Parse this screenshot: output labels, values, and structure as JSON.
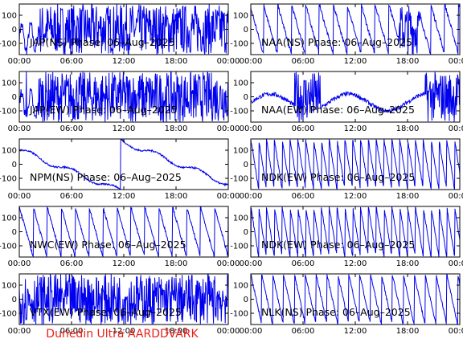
{
  "footer": "Dunedin Ultra AARDDVARK",
  "colors": {
    "trace": "#0000ee",
    "frame": "#000000",
    "footer": "#e8201a"
  },
  "chart_data": [
    {
      "type": "line",
      "title": "JAP(NS) Phase: 06–Aug–2025",
      "pattern": "saturated",
      "period_h": 0,
      "ylim": [
        -180,
        180
      ],
      "yticks": [
        100,
        0,
        -100
      ],
      "xticks": [
        "00:00",
        "06:00",
        "12:00",
        "18:00",
        "00:00"
      ]
    },
    {
      "type": "line",
      "title": "NAA(NS) Phase: 06–Aug–2025",
      "pattern": "mixed",
      "period_h": 1.6,
      "ylim": [
        -180,
        180
      ],
      "yticks": [
        100,
        0,
        -100
      ],
      "xticks": [
        "00:00",
        "06:00",
        "12:00",
        "18:00",
        "00:00"
      ]
    },
    {
      "type": "line",
      "title": "JAP(EW) Phase: 06–Aug–2025",
      "pattern": "saturated",
      "period_h": 0,
      "ylim": [
        -180,
        180
      ],
      "yticks": [
        100,
        0,
        -100
      ],
      "xticks": [
        "00:00",
        "06:00",
        "12:00",
        "18:00",
        "00:00"
      ]
    },
    {
      "type": "line",
      "title": "NAA(EW) Phase: 06–Aug–2025",
      "pattern": "sparse",
      "period_h": 3,
      "ylim": [
        -180,
        180
      ],
      "yticks": [
        100,
        0,
        -100
      ],
      "xticks": [
        "00:00",
        "06:00",
        "12:00",
        "18:00",
        "00:00"
      ]
    },
    {
      "type": "line",
      "title": "NPM(NS) Phase: 06–Aug–2025",
      "pattern": "drift",
      "period_h": 6,
      "ylim": [
        -180,
        180
      ],
      "yticks": [
        100,
        0,
        -100
      ],
      "xticks": [
        "00:00",
        "06:00",
        "12:00",
        "18:00",
        "00:00"
      ]
    },
    {
      "type": "line",
      "title": "NDK(EW) Phase: 06–Aug–2025",
      "pattern": "wrap",
      "period_h": 0.9,
      "ylim": [
        -180,
        180
      ],
      "yticks": [
        100,
        0,
        -100
      ],
      "xticks": [
        "00:00",
        "06:00",
        "12:00",
        "18:00",
        "00:00"
      ]
    },
    {
      "type": "line",
      "title": "NWC(EW) Phase: 06–Aug–2025",
      "pattern": "wrap",
      "period_h": 1.6,
      "ylim": [
        -180,
        180
      ],
      "yticks": [
        100,
        0,
        -100
      ],
      "xticks": [
        "00:00",
        "06:00",
        "12:00",
        "18:00",
        "00:00"
      ]
    },
    {
      "type": "line",
      "title": "NDK(EW) Phase: 06–Aug–2025",
      "pattern": "wrap",
      "period_h": 0.9,
      "ylim": [
        -180,
        180
      ],
      "yticks": [
        100,
        0,
        -100
      ],
      "xticks": [
        "00:00",
        "06:00",
        "12:00",
        "18:00",
        "00:00"
      ]
    },
    {
      "type": "line",
      "title": "VTX(EW) Phase: 06–Aug–2025",
      "pattern": "noise",
      "period_h": 0.15,
      "ylim": [
        -180,
        180
      ],
      "yticks": [
        100,
        0,
        -100
      ],
      "xticks": [
        "00:00",
        "06:00",
        "12:00",
        "18:00",
        "00:00"
      ]
    },
    {
      "type": "line",
      "title": "NLK(NS) Phase: 06–Aug–2025",
      "pattern": "wrap",
      "period_h": 1.25,
      "ylim": [
        -180,
        180
      ],
      "yticks": [
        100,
        0,
        -100
      ],
      "xticks": [
        "00:00",
        "06:00",
        "12:00",
        "18:00",
        "00:00"
      ]
    }
  ]
}
